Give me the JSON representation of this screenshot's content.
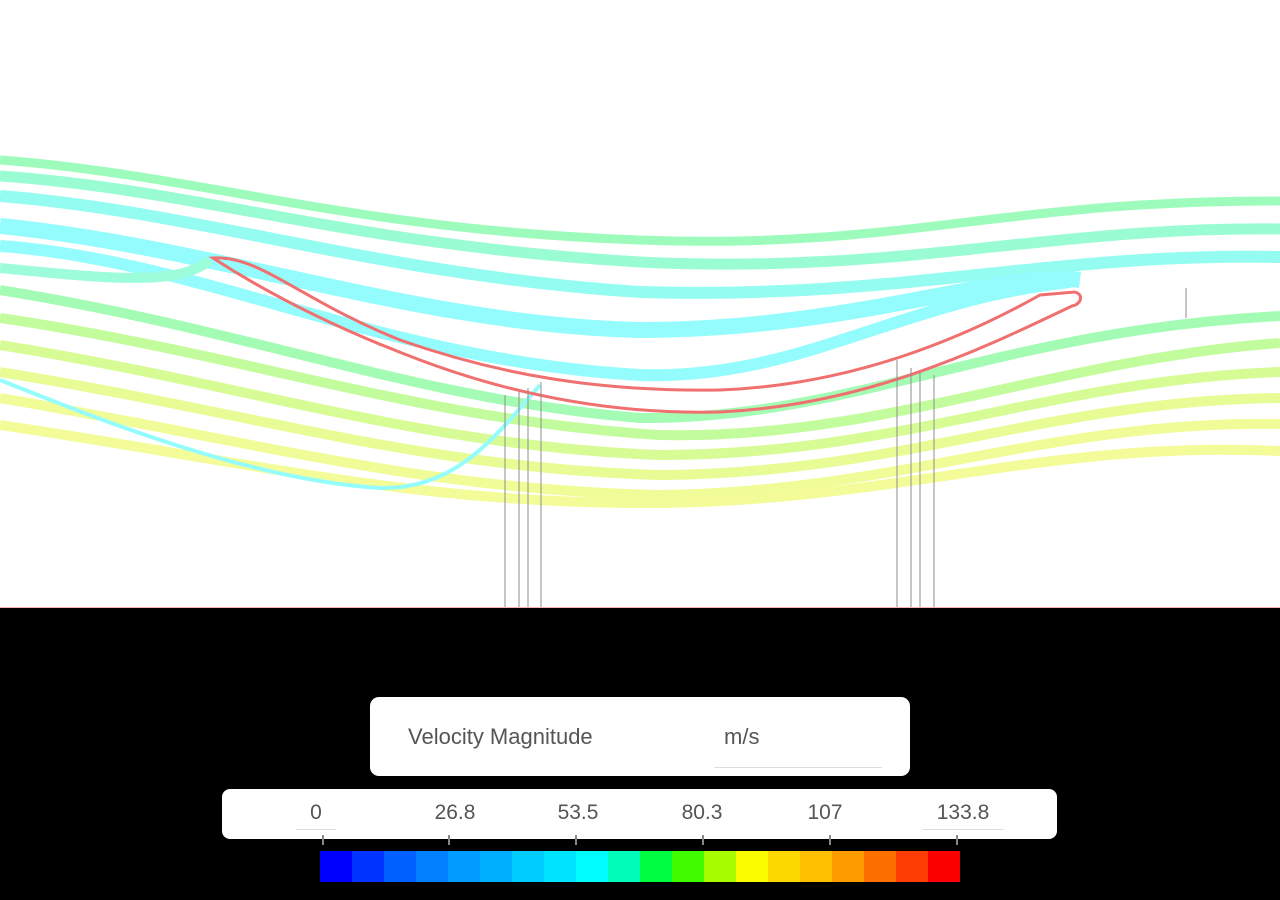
{
  "viewport": {
    "background": "#ffffff",
    "blade_outline_color": "#f06868",
    "ground_line_color": "#f06060",
    "streamline_colors": {
      "cyan": "#8ffcfc",
      "aqua_green": "#96fcd8",
      "green": "#98fca6",
      "yellow_green": "#d4fc8c",
      "yellow": "#fafc94"
    }
  },
  "legend": {
    "field_name": "Velocity Magnitude",
    "unit": "m/s",
    "ticks": [
      "0",
      "26.8",
      "53.5",
      "80.3",
      "107",
      "133.8"
    ],
    "min": 0,
    "max": 133.8,
    "colorbar": [
      "#0000ff",
      "#0033ff",
      "#0060ff",
      "#0080ff",
      "#009cff",
      "#00b0ff",
      "#00ccff",
      "#00e5ff",
      "#00fcff",
      "#00fcb8",
      "#00fc40",
      "#40fc00",
      "#a8fc00",
      "#fcfc00",
      "#fcd800",
      "#fcc000",
      "#fc9c00",
      "#fc7000",
      "#fc3c00",
      "#fc0000"
    ]
  }
}
